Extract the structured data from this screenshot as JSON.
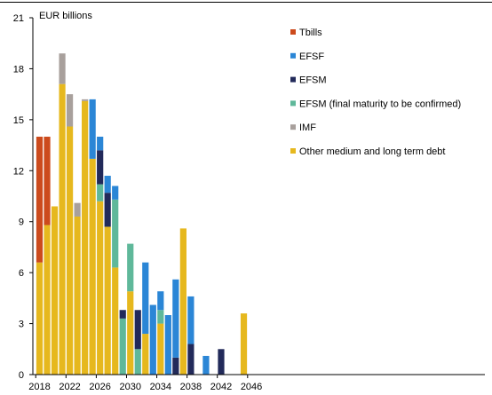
{
  "chart_data": {
    "type": "bar",
    "stacked": true,
    "ylabel": "EUR billions",
    "ylim": [
      0,
      21
    ],
    "yticks": [
      0,
      3,
      6,
      9,
      12,
      15,
      18,
      21
    ],
    "x": [
      2018,
      2019,
      2020,
      2021,
      2022,
      2023,
      2024,
      2025,
      2026,
      2027,
      2028,
      2029,
      2030,
      2031,
      2032,
      2033,
      2034,
      2035,
      2036,
      2037,
      2038,
      2039,
      2040,
      2041,
      2042,
      2043,
      2044,
      2045,
      2046,
      2047
    ],
    "xticks": [
      2018,
      2022,
      2026,
      2030,
      2034,
      2038,
      2042,
      2046
    ],
    "legend_position": "top-right",
    "series": [
      {
        "name": "Other medium and long term debt",
        "color": "#e6b81e",
        "values": [
          6.6,
          8.8,
          9.9,
          17.1,
          14.6,
          9.3,
          16.1,
          12.7,
          10.2,
          8.7,
          6.3,
          0,
          4.9,
          0,
          2.4,
          0,
          3.0,
          0,
          0,
          8.6,
          0,
          0,
          0,
          0,
          0,
          0,
          0,
          3.6,
          0,
          0
        ]
      },
      {
        "name": "EFSM (final maturity to be confirmed)",
        "color": "#5fb89a",
        "values": [
          0,
          0,
          0,
          0,
          0,
          0,
          0,
          0,
          1.0,
          0,
          4.0,
          3.3,
          2.8,
          1.5,
          0,
          0,
          0.8,
          0,
          0,
          0,
          0,
          0,
          0,
          0,
          0,
          0,
          0,
          0,
          0,
          0
        ]
      },
      {
        "name": "EFSM",
        "color": "#222a5a",
        "values": [
          0,
          0,
          0,
          0,
          0,
          0,
          0,
          0,
          2.0,
          2.0,
          0,
          0.5,
          0,
          2.3,
          0,
          0,
          0,
          0,
          1.0,
          0,
          1.8,
          0,
          0,
          0,
          1.5,
          0,
          0,
          0,
          0,
          0
        ]
      },
      {
        "name": "EFSF",
        "color": "#2b86d6",
        "values": [
          0,
          0,
          0,
          0,
          0,
          0,
          0,
          3.5,
          0.8,
          1.0,
          0.8,
          0,
          0,
          0,
          4.2,
          4.1,
          1.1,
          3.5,
          4.6,
          0,
          2.8,
          0,
          1.1,
          0,
          0,
          0,
          0,
          0,
          0,
          0
        ]
      },
      {
        "name": "IMF",
        "color": "#a8a09c",
        "values": [
          0,
          0,
          0,
          1.8,
          1.9,
          0.8,
          0.1,
          0,
          0,
          0,
          0,
          0,
          0,
          0,
          0,
          0,
          0,
          0,
          0,
          0,
          0,
          0,
          0,
          0,
          0,
          0,
          0,
          0,
          0,
          0
        ]
      },
      {
        "name": "Tbills",
        "color": "#cc4a1c",
        "values": [
          7.4,
          5.2,
          0,
          0,
          0,
          0,
          0,
          0,
          0,
          0,
          0,
          0,
          0,
          0,
          0,
          0,
          0,
          0,
          0,
          0,
          0,
          0,
          0,
          0,
          0,
          0,
          0,
          0,
          0,
          0
        ]
      }
    ],
    "legend_order": [
      "Tbills",
      "EFSF",
      "EFSM",
      "EFSM (final maturity to be confirmed)",
      "IMF",
      "Other medium and long term debt"
    ]
  }
}
